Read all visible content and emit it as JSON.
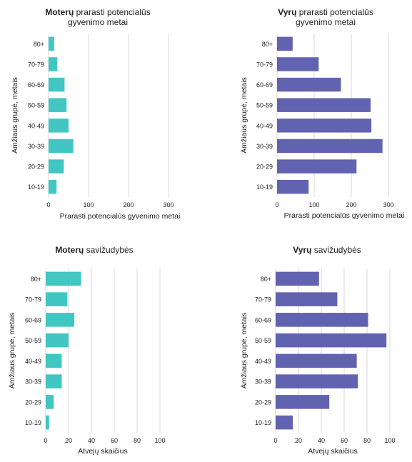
{
  "colors": {
    "female": "#41c6c2",
    "male": "#6163b1",
    "grid": "#d9d9d9",
    "text": "#222222"
  },
  "chart_data": [
    {
      "type": "bar",
      "orientation": "horizontal",
      "title_bold": "Moterų",
      "title_rest": "prarasti potencialūs",
      "title_line2": "gyvenimo metai",
      "xlabel": "Prarasti potencialūs gyvenimo metai",
      "ylabel": "Amžiaus grupė, metais",
      "categories": [
        "80+",
        "70-79",
        "60-69",
        "50-59",
        "40-49",
        "30-39",
        "20-29",
        "10-19"
      ],
      "values": [
        14,
        22,
        40,
        45,
        50,
        62,
        38,
        20
      ],
      "xlim": [
        0,
        300
      ],
      "xticks": [
        "0",
        "100",
        "200",
        "300"
      ],
      "grid": "vertical",
      "color": "#41c6c2"
    },
    {
      "type": "bar",
      "orientation": "horizontal",
      "title_bold": "Vyrų",
      "title_rest": "prarasti potencialūs",
      "title_line2": "gyvenimo metai",
      "xlabel": "Prarasti potencialūs gyvenimo metai",
      "ylabel": "Amžiaus grupė, metais",
      "categories": [
        "80+",
        "70-79",
        "60-69",
        "50-59",
        "40-49",
        "30-39",
        "20-29",
        "10-19"
      ],
      "values": [
        42,
        112,
        172,
        252,
        254,
        284,
        214,
        85
      ],
      "xlim": [
        0,
        300
      ],
      "xticks": [
        "0",
        "100",
        "200",
        "300"
      ],
      "grid": "vertical",
      "color": "#6163b1"
    },
    {
      "type": "bar",
      "orientation": "horizontal",
      "title_bold": "Moterų",
      "title_rest": "savižudybės",
      "title_line2": "",
      "xlabel": "Atvejų skaičius",
      "ylabel": "Amžiaus grupė, metais",
      "categories": [
        "80+",
        "70-79",
        "60-69",
        "50-59",
        "40-49",
        "30-39",
        "20-29",
        "10-19"
      ],
      "values": [
        31,
        19,
        25,
        20,
        14,
        14,
        7,
        3
      ],
      "xlim": [
        0,
        100
      ],
      "xticks": [
        "0",
        "20",
        "40",
        "60",
        "80",
        "100"
      ],
      "grid": "vertical",
      "color": "#41c6c2"
    },
    {
      "type": "bar",
      "orientation": "horizontal",
      "title_bold": "Vyrų",
      "title_rest": "savižudybės",
      "title_line2": "",
      "xlabel": "Atvejų skaičius",
      "ylabel": "Amžiaus grupė, metais",
      "categories": [
        "80+",
        "70-79",
        "60-69",
        "50-59",
        "40-49",
        "30-39",
        "20-29",
        "10-19"
      ],
      "values": [
        38,
        54,
        81,
        97,
        71,
        72,
        47,
        15
      ],
      "xlim": [
        0,
        100
      ],
      "xticks": [
        "0",
        "20",
        "40",
        "60",
        "80",
        "100"
      ],
      "grid": "vertical",
      "color": "#6163b1"
    }
  ]
}
